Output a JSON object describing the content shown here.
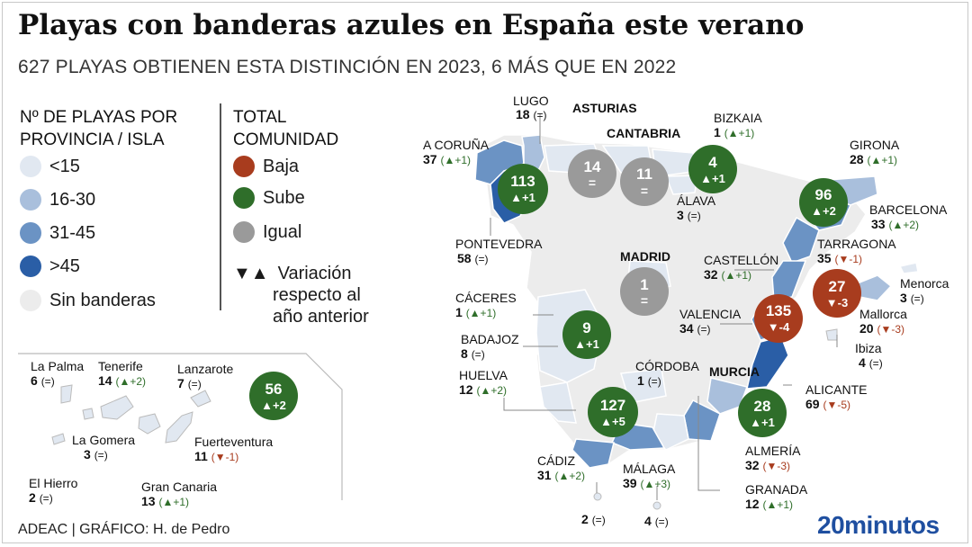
{
  "title": "Playas con banderas azules en España este verano",
  "subtitle": "627 PLAYAS OBTIENEN ESTA DISTINCIÓN EN 2023, 6 MÁS QUE EN 2022",
  "colors": {
    "lt15": "#e1e8f1",
    "r16_30": "#a9bfdc",
    "r31_45": "#6b93c4",
    "gt45": "#2a5ea6",
    "none": "#ececec",
    "baja": "#a83c1e",
    "sube": "#2f6e2a",
    "igual": "#9a9a9a"
  },
  "legend_left": {
    "heading_line1": "Nº DE PLAYAS POR",
    "heading_line2": "PROVINCIA / ISLA",
    "items": [
      {
        "label": "<15"
      },
      {
        "label": "16-30"
      },
      {
        "label": "31-45"
      },
      {
        "label": ">45"
      },
      {
        "label": "Sin banderas"
      }
    ]
  },
  "legend_right": {
    "heading_line1": "TOTAL",
    "heading_line2": "COMUNIDAD",
    "items": [
      {
        "label": "Baja"
      },
      {
        "label": "Sube"
      },
      {
        "label": "Igual"
      }
    ],
    "variation_symbol": "▼▲",
    "variation_line1": "Variación",
    "variation_line2": "respecto al",
    "variation_line3": "año anterior"
  },
  "provinces": [
    {
      "name": "LUGO",
      "value": "18",
      "change": "(=)"
    },
    {
      "name": "A CORUÑA",
      "value": "37",
      "change": "(▲+1)"
    },
    {
      "name": "PONTEVEDRA",
      "value": "58",
      "change": "(=)"
    },
    {
      "name": "BIZKAIA",
      "value": "1",
      "change": "(▲+1)"
    },
    {
      "name": "ÁLAVA",
      "value": "3",
      "change": "(=)"
    },
    {
      "name": "GIRONA",
      "value": "28",
      "change": "(▲+1)"
    },
    {
      "name": "BARCELONA",
      "value": "33",
      "change": "(▲+2)"
    },
    {
      "name": "TARRAGONA",
      "value": "35",
      "change": "(▼-1)"
    },
    {
      "name": "CASTELLÓN",
      "value": "32",
      "change": "(▲+1)"
    },
    {
      "name": "VALENCIA",
      "value": "34",
      "change": "(=)"
    },
    {
      "name": "ALICANTE",
      "value": "69",
      "change": "(▼-5)"
    },
    {
      "name": "Menorca",
      "value": "3",
      "change": "(=)"
    },
    {
      "name": "Mallorca",
      "value": "20",
      "change": "(▼-3)"
    },
    {
      "name": "Ibiza",
      "value": "4",
      "change": "(=)"
    },
    {
      "name": "CÁCERES",
      "value": "1",
      "change": "(▲+1)"
    },
    {
      "name": "BADAJOZ",
      "value": "8",
      "change": "(=)"
    },
    {
      "name": "HUELVA",
      "value": "12",
      "change": "(▲+2)"
    },
    {
      "name": "CÓRDOBA",
      "value": "1",
      "change": "(=)"
    },
    {
      "name": "CÁDIZ",
      "value": "31",
      "change": "(▲+2)"
    },
    {
      "name": "MÁLAGA",
      "value": "39",
      "change": "(▲+3)"
    },
    {
      "name": "ALMERÍA",
      "value": "32",
      "change": "(▼-3)"
    },
    {
      "name": "GRANADA",
      "value": "12",
      "change": "(▲+1)"
    },
    {
      "name": "",
      "value": "2",
      "change": "(=)"
    },
    {
      "name": "",
      "value": "4",
      "change": "(=)"
    }
  ],
  "region_labels": {
    "asturias": "ASTURIAS",
    "cantabria": "CANTABRIA",
    "madrid": "MADRID",
    "murcia": "MURCIA"
  },
  "communities": [
    {
      "value": "113",
      "change": "▲+1",
      "trend": "sube"
    },
    {
      "value": "14",
      "change": "=",
      "trend": "igual"
    },
    {
      "value": "11",
      "change": "=",
      "trend": "igual"
    },
    {
      "value": "4",
      "change": "▲+1",
      "trend": "sube"
    },
    {
      "value": "96",
      "change": "▲+2",
      "trend": "sube"
    },
    {
      "value": "1",
      "change": "=",
      "trend": "igual"
    },
    {
      "value": "27",
      "change": "▼-3",
      "trend": "baja"
    },
    {
      "value": "135",
      "change": "▼-4",
      "trend": "baja"
    },
    {
      "value": "9",
      "change": "▲+1",
      "trend": "sube"
    },
    {
      "value": "127",
      "change": "▲+5",
      "trend": "sube"
    },
    {
      "value": "28",
      "change": "▲+1",
      "trend": "sube"
    },
    {
      "value": "56",
      "change": "▲+2",
      "trend": "sube"
    }
  ],
  "canarias": [
    {
      "name": "La Palma",
      "value": "6",
      "change": "(=)"
    },
    {
      "name": "Tenerife",
      "value": "14",
      "change": "(▲+2)"
    },
    {
      "name": "Lanzarote",
      "value": "7",
      "change": "(=)"
    },
    {
      "name": "La Gomera",
      "value": "3",
      "change": "(=)"
    },
    {
      "name": "Fuerteventura",
      "value": "11",
      "change": "(▼-1)"
    },
    {
      "name": "El Hierro",
      "value": "2",
      "change": "(=)"
    },
    {
      "name": "Gran Canaria",
      "value": "13",
      "change": "(▲+1)"
    }
  ],
  "footer": "ADEAC  |  GRÁFICO: H. de Pedro",
  "brand": "20minutos"
}
